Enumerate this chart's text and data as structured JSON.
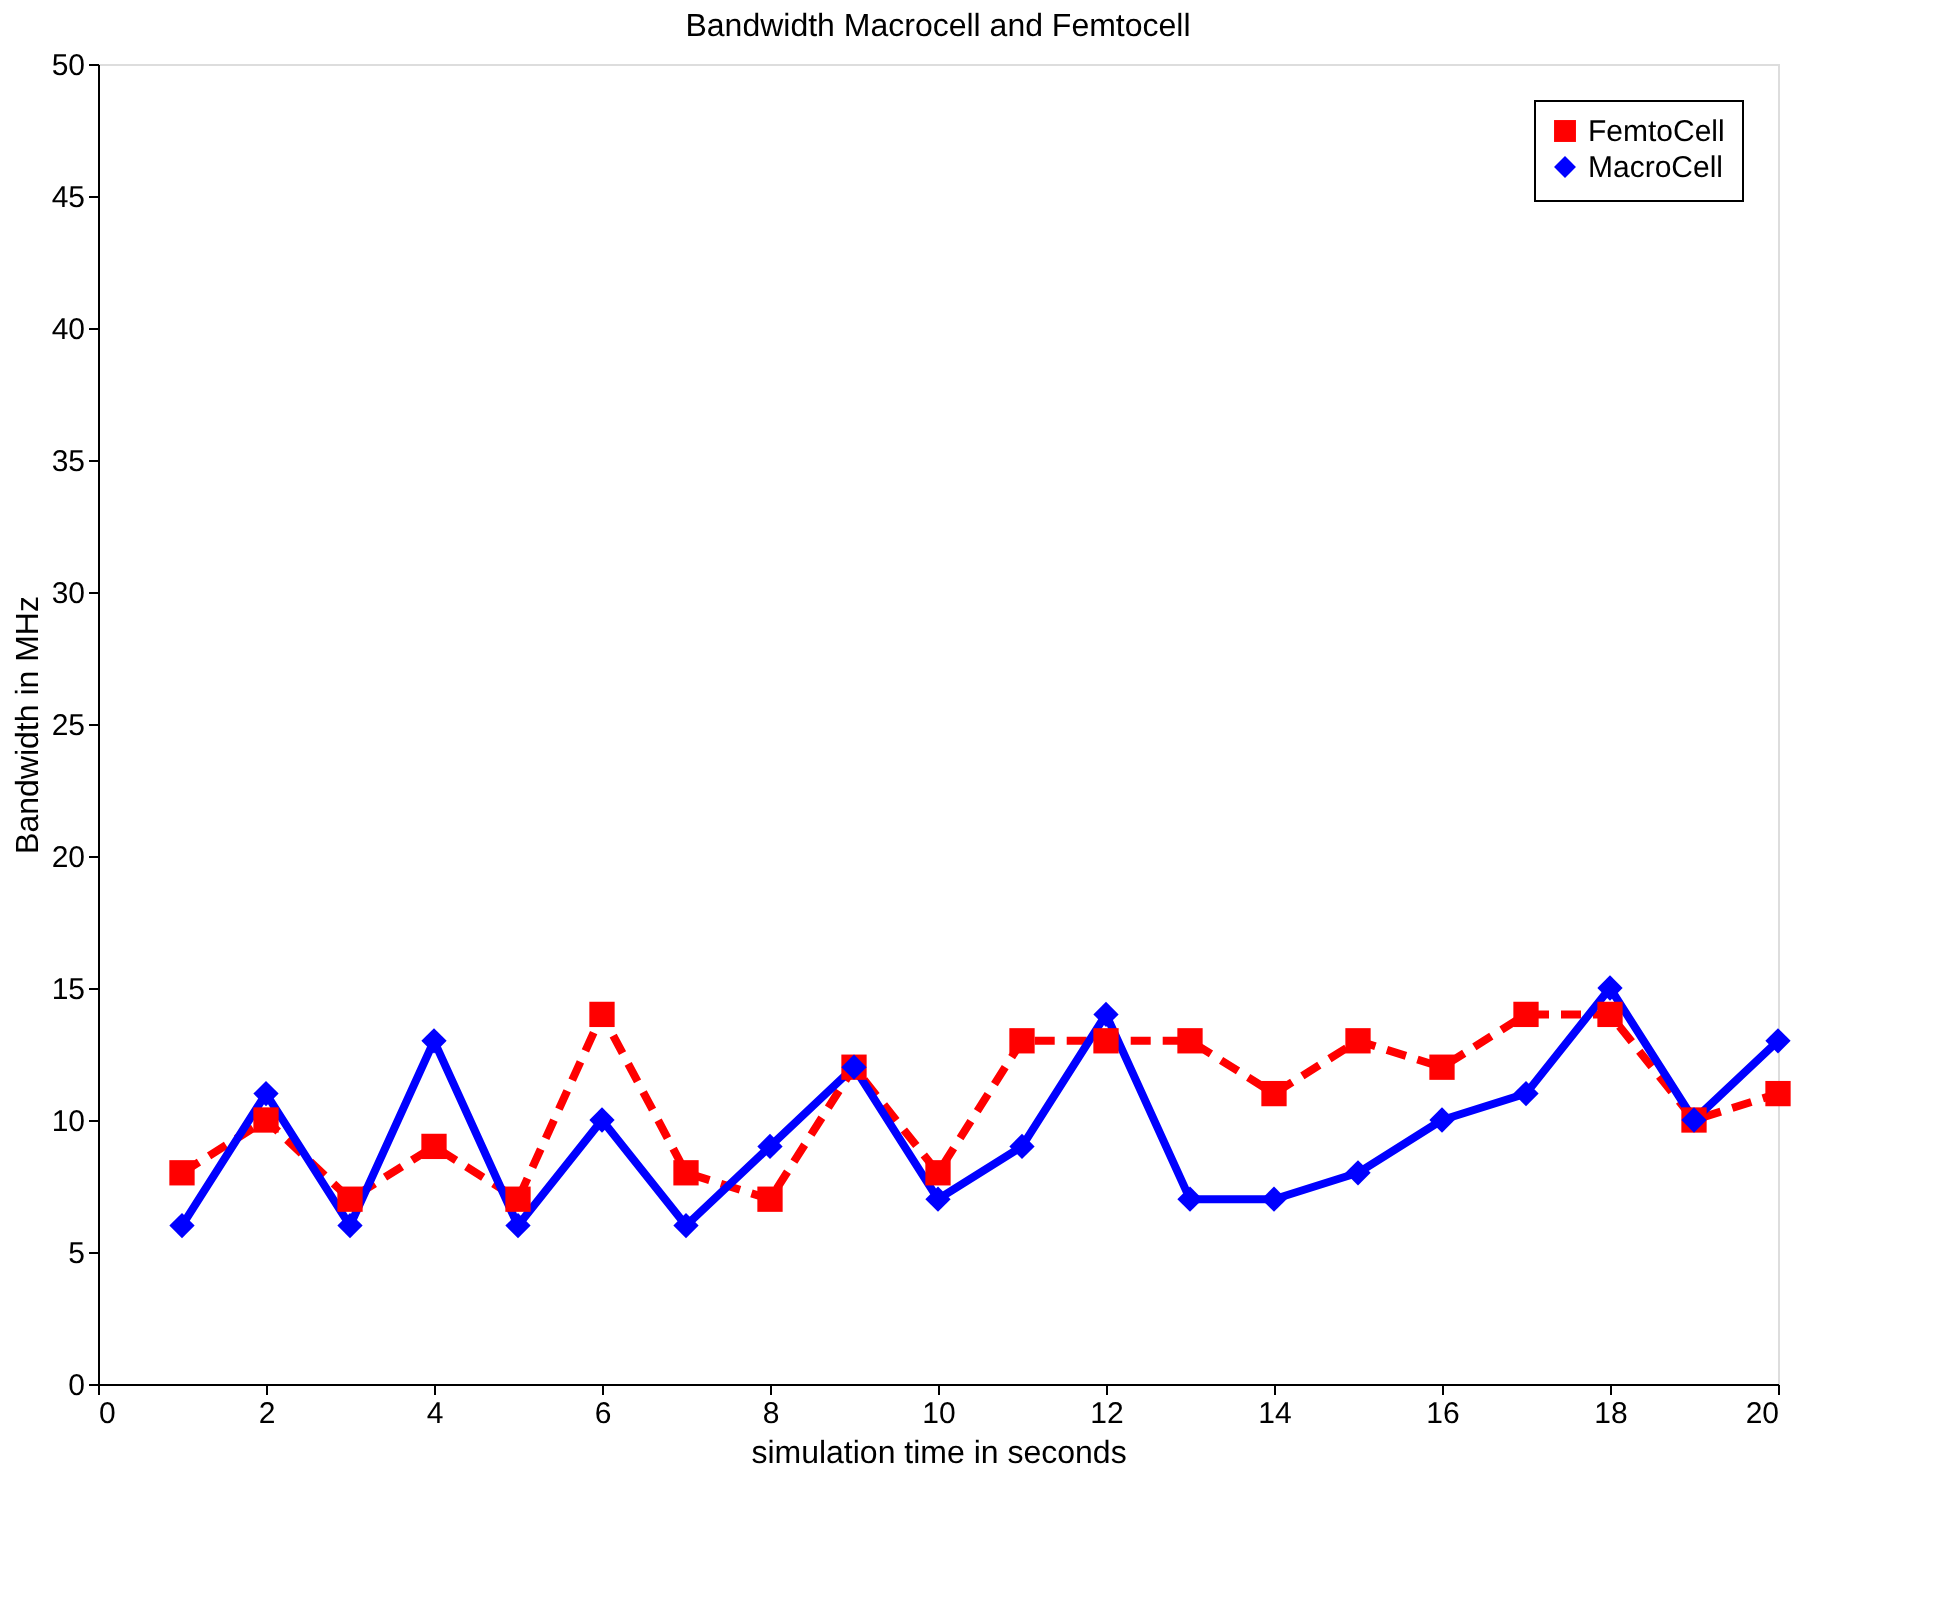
{
  "chart_data": {
    "type": "line",
    "title": "Bandwidth Macrocell and Femtocell",
    "xlabel": "simulation time in seconds",
    "ylabel": "Bandwidth in MHz",
    "x": [
      1,
      2,
      3,
      4,
      5,
      6,
      7,
      8,
      9,
      10,
      11,
      12,
      13,
      14,
      15,
      16,
      17,
      18,
      19,
      20
    ],
    "series": [
      {
        "name": "FemtoCell",
        "color": "#ff0000",
        "marker": "square",
        "line_style": "dashed",
        "values": [
          8,
          10,
          7,
          9,
          7,
          14,
          8,
          7,
          12,
          8,
          13,
          13,
          13,
          11,
          13,
          12,
          14,
          14,
          10,
          11
        ]
      },
      {
        "name": "MacroCell",
        "color": "#0000ff",
        "marker": "diamond",
        "line_style": "solid",
        "values": [
          6,
          11,
          6,
          13,
          6,
          10,
          6,
          9,
          12,
          7,
          9,
          14,
          7,
          7,
          8,
          10,
          11,
          15,
          10,
          13
        ]
      }
    ],
    "xlim": [
      0,
      20
    ],
    "xticks": [
      0,
      2,
      4,
      6,
      8,
      10,
      12,
      14,
      16,
      18,
      20
    ],
    "ylim": [
      0,
      50
    ],
    "yticks": [
      0,
      5,
      10,
      15,
      20,
      25,
      30,
      35,
      40,
      45,
      50
    ],
    "grid": false,
    "legend": "top right"
  }
}
